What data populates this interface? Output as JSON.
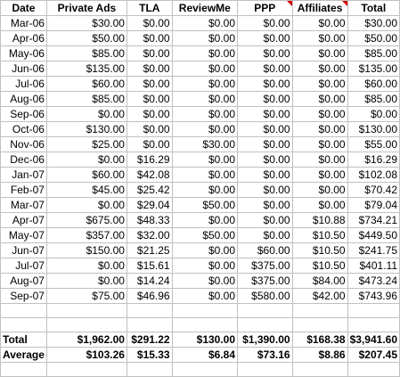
{
  "headers": [
    "Date",
    "Private Ads",
    "TLA",
    "ReviewMe",
    "PPP",
    "Affiliates",
    "Total"
  ],
  "rows": [
    {
      "date": "Mar-06",
      "cells": [
        "$30.00",
        "$0.00",
        "$0.00",
        "$0.00",
        "$0.00",
        "$30.00"
      ]
    },
    {
      "date": "Apr-06",
      "cells": [
        "$50.00",
        "$0.00",
        "$0.00",
        "$0.00",
        "$0.00",
        "$50.00"
      ]
    },
    {
      "date": "May-06",
      "cells": [
        "$85.00",
        "$0.00",
        "$0.00",
        "$0.00",
        "$0.00",
        "$85.00"
      ]
    },
    {
      "date": "Jun-06",
      "cells": [
        "$135.00",
        "$0.00",
        "$0.00",
        "$0.00",
        "$0.00",
        "$135.00"
      ]
    },
    {
      "date": "Jul-06",
      "cells": [
        "$60.00",
        "$0.00",
        "$0.00",
        "$0.00",
        "$0.00",
        "$60.00"
      ]
    },
    {
      "date": "Aug-06",
      "cells": [
        "$85.00",
        "$0.00",
        "$0.00",
        "$0.00",
        "$0.00",
        "$85.00"
      ]
    },
    {
      "date": "Sep-06",
      "cells": [
        "$0.00",
        "$0.00",
        "$0.00",
        "$0.00",
        "$0.00",
        "$0.00"
      ]
    },
    {
      "date": "Oct-06",
      "cells": [
        "$130.00",
        "$0.00",
        "$0.00",
        "$0.00",
        "$0.00",
        "$130.00"
      ]
    },
    {
      "date": "Nov-06",
      "cells": [
        "$25.00",
        "$0.00",
        "$30.00",
        "$0.00",
        "$0.00",
        "$55.00"
      ]
    },
    {
      "date": "Dec-06",
      "cells": [
        "$0.00",
        "$16.29",
        "$0.00",
        "$0.00",
        "$0.00",
        "$16.29"
      ]
    },
    {
      "date": "Jan-07",
      "cells": [
        "$60.00",
        "$42.08",
        "$0.00",
        "$0.00",
        "$0.00",
        "$102.08"
      ]
    },
    {
      "date": "Feb-07",
      "cells": [
        "$45.00",
        "$25.42",
        "$0.00",
        "$0.00",
        "$0.00",
        "$70.42"
      ]
    },
    {
      "date": "Mar-07",
      "cells": [
        "$0.00",
        "$29.04",
        "$50.00",
        "$0.00",
        "$0.00",
        "$79.04"
      ]
    },
    {
      "date": "Apr-07",
      "cells": [
        "$675.00",
        "$48.33",
        "$0.00",
        "$0.00",
        "$10.88",
        "$734.21"
      ]
    },
    {
      "date": "May-07",
      "cells": [
        "$357.00",
        "$32.00",
        "$50.00",
        "$0.00",
        "$10.50",
        "$449.50"
      ]
    },
    {
      "date": "Jun-07",
      "cells": [
        "$150.00",
        "$21.25",
        "$0.00",
        "$60.00",
        "$10.50",
        "$241.75"
      ]
    },
    {
      "date": "Jul-07",
      "cells": [
        "$0.00",
        "$15.61",
        "$0.00",
        "$375.00",
        "$10.50",
        "$401.11"
      ]
    },
    {
      "date": "Aug-07",
      "cells": [
        "$0.00",
        "$14.24",
        "$0.00",
        "$375.00",
        "$84.00",
        "$473.24"
      ]
    },
    {
      "date": "Sep-07",
      "cells": [
        "$75.00",
        "$46.96",
        "$0.00",
        "$580.00",
        "$42.00",
        "$743.96"
      ]
    }
  ],
  "summary": [
    {
      "label": "Total",
      "cells": [
        "$1,962.00",
        "$291.22",
        "$130.00",
        "$1,390.00",
        "$168.38",
        "$3,941.60"
      ]
    },
    {
      "label": "Average",
      "cells": [
        "$103.26",
        "$15.33",
        "$6.84",
        "$73.16",
        "$8.86",
        "$207.45"
      ]
    }
  ],
  "colors": {
    "grid": "#c0c0c0",
    "comment_flag": "#d40000"
  }
}
